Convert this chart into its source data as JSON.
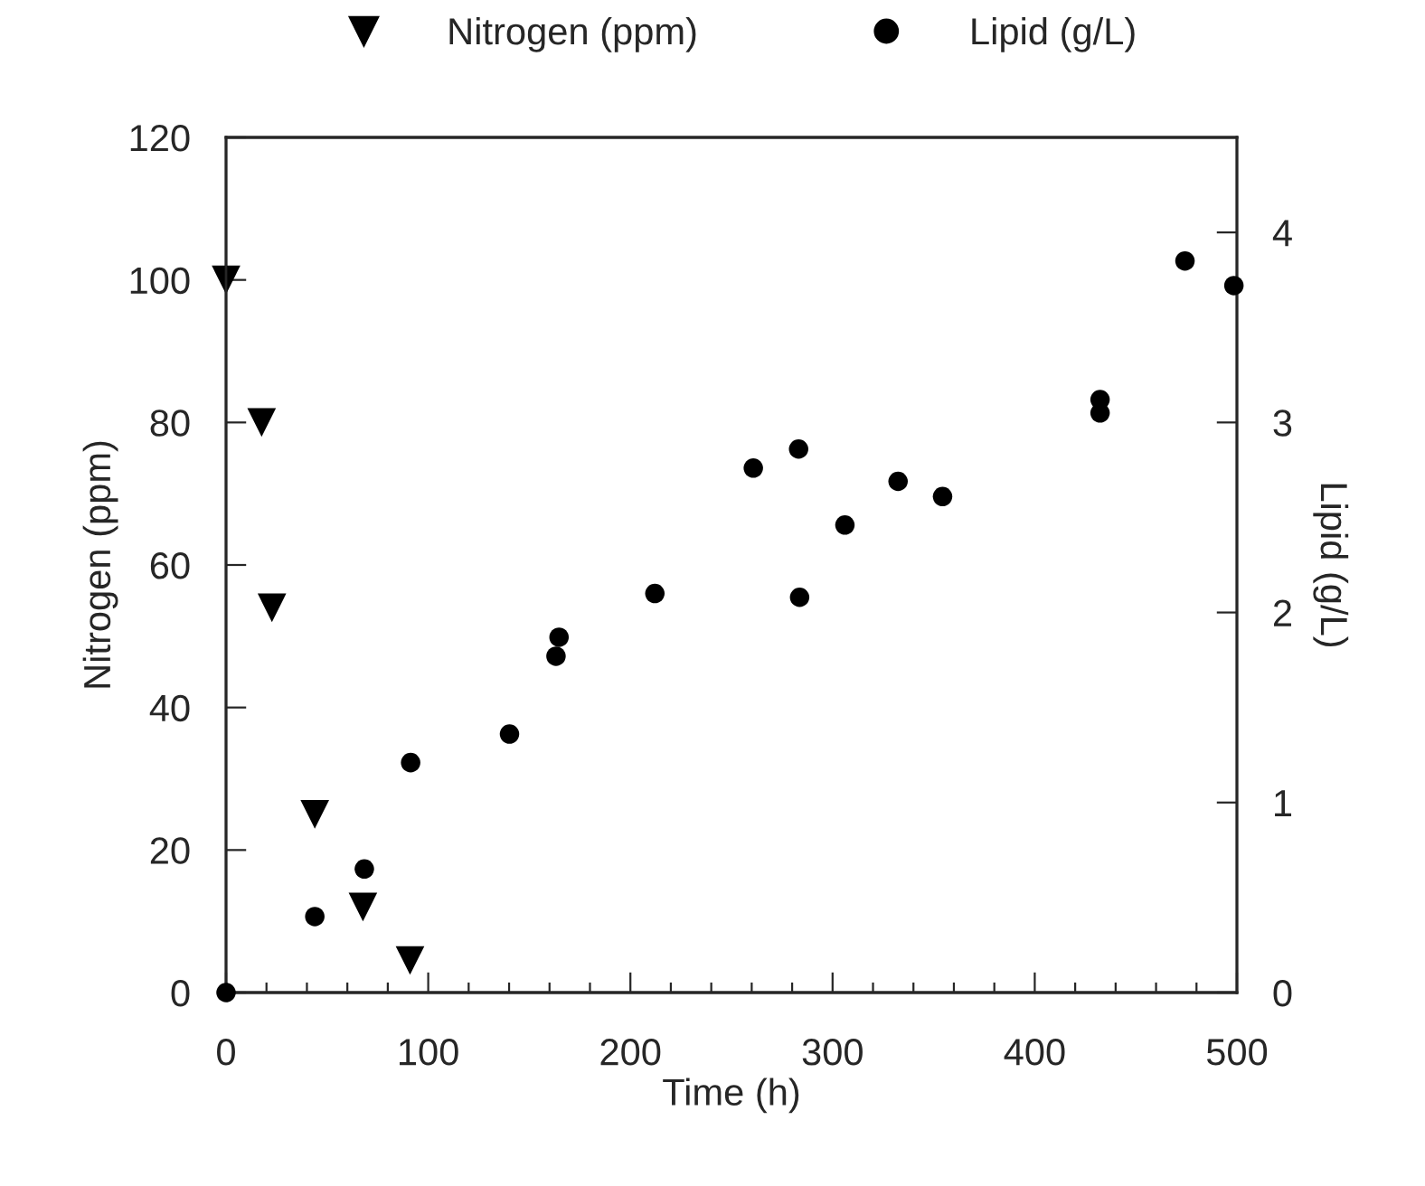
{
  "chart_data": {
    "type": "scatter",
    "xlabel": "Time (h)",
    "ylabel": "Nitrogen (ppm)",
    "y2label": "Lipid (g/L)",
    "series": [
      {
        "name": "Nitrogen (ppm)",
        "color": "#000000",
        "marker": "triangle",
        "x": [
          0,
          17.6,
          22.7,
          43.9,
          67.7,
          91
        ],
        "values": [
          100,
          80,
          54,
          25,
          12,
          4.5
        ]
      },
      {
        "name": "Lipid (g/L)",
        "color": "#000000",
        "marker": "circle",
        "axis": "y2",
        "x": [
          0,
          43.9,
          68.4,
          91.3,
          140.2,
          163.2,
          164.7,
          212.1,
          260.8,
          283.2,
          283.7,
          306.1,
          332.4,
          354.4,
          432.3,
          432.3,
          474.3,
          498.5
        ],
        "values": [
          0,
          0.4,
          0.65,
          1.21,
          1.36,
          1.77,
          1.87,
          2.1,
          2.76,
          2.86,
          2.08,
          2.46,
          2.69,
          2.61,
          3.12,
          3.05,
          3.85,
          3.72
        ]
      }
    ],
    "xlim": [
      0,
      500
    ],
    "xticks": [
      0,
      {
        "value": 20,
        "label": null
      },
      {
        "value": 40,
        "label": null
      },
      {
        "value": 60,
        "label": null
      },
      {
        "value": 80,
        "label": null
      },
      100,
      {
        "value": 120,
        "label": null
      },
      {
        "value": 140,
        "label": null
      },
      {
        "value": 160,
        "label": null
      },
      {
        "value": 180,
        "label": null
      },
      200,
      {
        "value": 220,
        "label": null
      },
      {
        "value": 240,
        "label": null
      },
      {
        "value": 260,
        "label": null
      },
      {
        "value": 280,
        "label": null
      },
      300,
      {
        "value": 320,
        "label": null
      },
      {
        "value": 340,
        "label": null
      },
      {
        "value": 360,
        "label": null
      },
      {
        "value": 380,
        "label": null
      },
      400,
      {
        "value": 420,
        "label": null
      },
      {
        "value": 440,
        "label": null
      },
      {
        "value": 460,
        "label": null
      },
      {
        "value": 480,
        "label": null
      },
      500
    ],
    "ylim": [
      0,
      120
    ],
    "yticks": [
      0,
      20,
      40,
      60,
      80,
      100,
      120
    ],
    "y2lim": [
      0,
      4.5
    ],
    "y2ticks": [
      0,
      1,
      2,
      3,
      4
    ],
    "grid": false,
    "legend": "top"
  }
}
